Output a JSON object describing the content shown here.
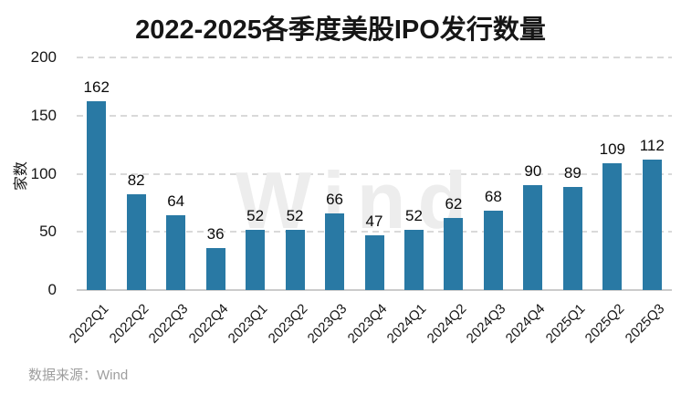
{
  "chart_data": {
    "type": "bar",
    "title": "2022-2025各季度美股IPO发行数量",
    "xlabel": "",
    "ylabel": "家数",
    "categories": [
      "2022Q1",
      "2022Q2",
      "2022Q3",
      "2022Q4",
      "2023Q1",
      "2023Q2",
      "2023Q3",
      "2023Q4",
      "2024Q1",
      "2024Q2",
      "2024Q3",
      "2024Q4",
      "2025Q1",
      "2025Q2",
      "2025Q3"
    ],
    "values": [
      162,
      82,
      64,
      36,
      52,
      52,
      66,
      47,
      52,
      62,
      68,
      90,
      89,
      109,
      112
    ],
    "ylim": [
      0,
      200
    ],
    "yticks": [
      0,
      50,
      100,
      150,
      200
    ],
    "grid": "horizontal-dashed",
    "legend": "none",
    "data_labels": true,
    "x_tick_rotation": 45,
    "bar_color": "#2979a4"
  },
  "watermark": "Wind",
  "footer": {
    "source": "数据来源：Wind"
  },
  "colors": {
    "bar": "#2979a4",
    "grid": "#d9d9d9",
    "axis": "#cbcbcb",
    "title_text": "#161616",
    "tick_text": "#161616",
    "value_label_text": "#0b0b0b",
    "watermark_text": "#ededed",
    "source_text": "#9e9e9e",
    "background": "#ffffff"
  }
}
